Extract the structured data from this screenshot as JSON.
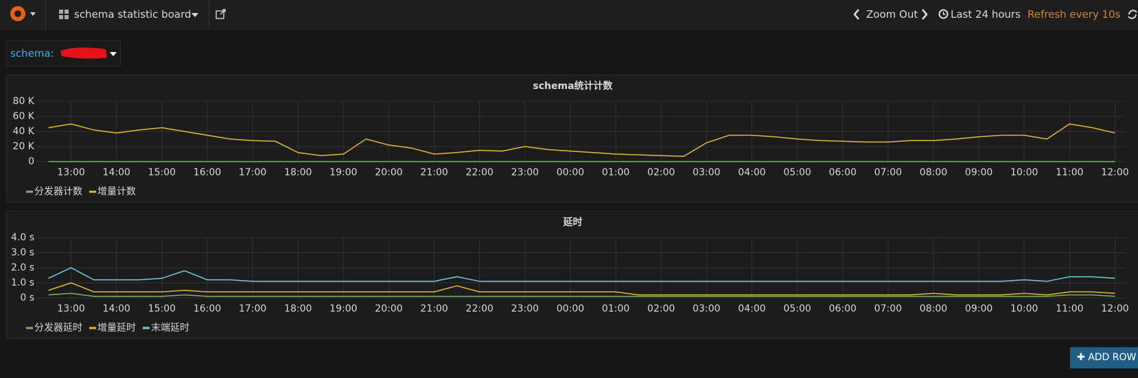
{
  "navbar": {
    "dashboard": "schema statistic board",
    "zoom_out": "Zoom Out",
    "time_range": "Last 24 hours",
    "refresh": "Refresh every 10s"
  },
  "variable": {
    "label": "schema:"
  },
  "chart_data": [
    {
      "type": "line",
      "title": "schema统计计数",
      "categories": [
        null,
        "13:00",
        null,
        "14:00",
        null,
        "15:00",
        null,
        "16:00",
        null,
        "17:00",
        null,
        "18:00",
        null,
        "19:00",
        null,
        "20:00",
        null,
        "21:00",
        null,
        "22:00",
        null,
        "23:00",
        null,
        "00:00",
        null,
        "01:00",
        null,
        "02:00",
        null,
        "03:00",
        null,
        "04:00",
        null,
        "05:00",
        null,
        "06:00",
        null,
        "07:00",
        null,
        "08:00",
        null,
        "09:00",
        null,
        "10:00",
        null,
        "11:00",
        null,
        "12:00"
      ],
      "ylim": [
        0,
        80
      ],
      "yticks": [
        0,
        {
          "value": 20,
          "label": "20 K"
        },
        {
          "value": 40,
          "label": "40 K"
        },
        {
          "value": 60,
          "label": "60 K"
        },
        {
          "value": 80,
          "label": "80 K"
        }
      ],
      "grid": true,
      "series": [
        {
          "name": "分发器计数",
          "color": "#7eb26d",
          "values": [
            0,
            0,
            0,
            0,
            0,
            0,
            0,
            0,
            0,
            0,
            0,
            0,
            0,
            0,
            0,
            0,
            0,
            0,
            0,
            0,
            0,
            0,
            0,
            0,
            0,
            0,
            0,
            0,
            0,
            0,
            0,
            0,
            0,
            0,
            0,
            0,
            0,
            0,
            0,
            0,
            0,
            0,
            0,
            0,
            0,
            0,
            0,
            0
          ]
        },
        {
          "name": "增量计数",
          "color": "#eab839",
          "values": [
            45,
            50,
            42,
            38,
            42,
            45,
            40,
            35,
            30,
            28,
            27,
            12,
            8,
            10,
            30,
            22,
            18,
            10,
            12,
            15,
            14,
            20,
            16,
            14,
            12,
            10,
            9,
            8,
            7,
            25,
            35,
            35,
            33,
            30,
            28,
            27,
            26,
            26,
            28,
            28,
            30,
            33,
            35,
            35,
            30,
            50,
            45,
            38
          ]
        }
      ]
    },
    {
      "type": "line",
      "title": "延时",
      "categories": [
        null,
        "13:00",
        null,
        "14:00",
        null,
        "15:00",
        null,
        "16:00",
        null,
        "17:00",
        null,
        "18:00",
        null,
        "19:00",
        null,
        "20:00",
        null,
        "21:00",
        null,
        "22:00",
        null,
        "23:00",
        null,
        "00:00",
        null,
        "01:00",
        null,
        "02:00",
        null,
        "03:00",
        null,
        "04:00",
        null,
        "05:00",
        null,
        "06:00",
        null,
        "07:00",
        null,
        "08:00",
        null,
        "09:00",
        null,
        "10:00",
        null,
        "11:00",
        null,
        "12:00"
      ],
      "ylim": [
        0,
        4
      ],
      "yticks": [
        {
          "value": 0,
          "label": "0 s"
        },
        {
          "value": 1,
          "label": "1.0 s"
        },
        {
          "value": 2,
          "label": "2.0 s"
        },
        {
          "value": 3,
          "label": "3.0 s"
        },
        {
          "value": 4,
          "label": "4.0 s"
        }
      ],
      "grid": true,
      "series": [
        {
          "name": "分发器延时",
          "color": "#7eb26d",
          "values": [
            0.2,
            0.3,
            0.1,
            0.1,
            0.1,
            0.1,
            0.2,
            0.1,
            0.1,
            0.1,
            0.1,
            0.1,
            0.1,
            0.1,
            0.1,
            0.1,
            0.1,
            0.1,
            0.1,
            0.1,
            0.1,
            0.1,
            0.1,
            0.1,
            0.1,
            0.1,
            0.1,
            0.1,
            0.1,
            0.1,
            0.1,
            0.1,
            0.1,
            0.1,
            0.1,
            0.1,
            0.1,
            0.1,
            0.1,
            0.1,
            0.1,
            0.1,
            0.1,
            0.1,
            0.1,
            0.2,
            0.2,
            0.1
          ]
        },
        {
          "name": "增量延时",
          "color": "#eab839",
          "values": [
            0.5,
            1.0,
            0.4,
            0.4,
            0.4,
            0.4,
            0.5,
            0.4,
            0.4,
            0.4,
            0.4,
            0.4,
            0.4,
            0.4,
            0.4,
            0.4,
            0.4,
            0.4,
            0.8,
            0.4,
            0.4,
            0.4,
            0.4,
            0.4,
            0.4,
            0.4,
            0.2,
            0.2,
            0.2,
            0.2,
            0.2,
            0.2,
            0.2,
            0.2,
            0.2,
            0.2,
            0.2,
            0.2,
            0.2,
            0.3,
            0.2,
            0.2,
            0.2,
            0.3,
            0.2,
            0.4,
            0.4,
            0.3
          ]
        },
        {
          "name": "末端延时",
          "color": "#6ed0e0",
          "values": [
            1.3,
            2.0,
            1.2,
            1.2,
            1.2,
            1.3,
            1.8,
            1.2,
            1.2,
            1.1,
            1.1,
            1.1,
            1.1,
            1.1,
            1.1,
            1.1,
            1.1,
            1.1,
            1.4,
            1.1,
            1.1,
            1.1,
            1.1,
            1.1,
            1.1,
            1.1,
            1.1,
            1.1,
            1.1,
            1.1,
            1.1,
            1.1,
            1.1,
            1.1,
            1.1,
            1.1,
            1.1,
            1.1,
            1.1,
            1.1,
            1.1,
            1.1,
            1.1,
            1.2,
            1.1,
            1.4,
            1.4,
            1.3
          ]
        }
      ]
    }
  ],
  "add_row": "ADD ROW"
}
